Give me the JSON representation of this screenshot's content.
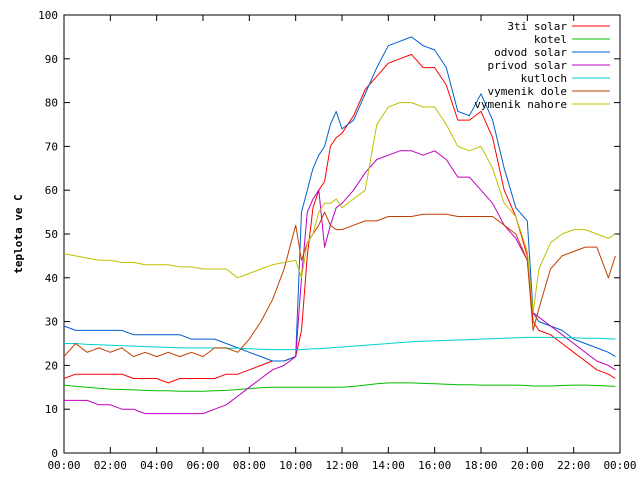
{
  "chart_data": {
    "type": "line",
    "title": "",
    "xlabel": "",
    "ylabel": "teplota ve C",
    "xlim": [
      "00:00",
      "24:00"
    ],
    "ylim": [
      0,
      100
    ],
    "x_ticks": [
      "00:00",
      "02:00",
      "04:00",
      "06:00",
      "08:00",
      "10:00",
      "12:00",
      "14:00",
      "16:00",
      "18:00",
      "20:00",
      "22:00",
      "00:00"
    ],
    "y_ticks": [
      "0",
      "10",
      "20",
      "30",
      "40",
      "50",
      "60",
      "70",
      "80",
      "90",
      "100"
    ],
    "grid": false,
    "legend_position": "top-right",
    "x_hours": [
      0,
      0.5,
      1,
      1.5,
      2,
      2.5,
      3,
      3.5,
      4,
      4.5,
      5,
      5.5,
      6,
      6.5,
      7,
      7.5,
      8,
      8.5,
      9,
      9.5,
      10,
      10.25,
      10.5,
      10.75,
      11,
      11.25,
      11.5,
      11.75,
      12,
      12.5,
      13,
      13.5,
      14,
      14.5,
      15,
      15.5,
      16,
      16.5,
      17,
      17.5,
      18,
      18.5,
      19,
      19.5,
      20,
      20.25,
      20.5,
      21,
      21.5,
      22,
      22.5,
      23,
      23.5,
      23.8
    ],
    "series": [
      {
        "name": "3ti solar",
        "color": "#ff0000",
        "values": [
          17,
          18,
          18,
          18,
          18,
          18,
          17,
          17,
          17,
          16,
          17,
          17,
          17,
          17,
          18,
          18,
          19,
          20,
          21,
          21,
          22,
          28,
          45,
          56,
          60,
          62,
          70,
          72,
          73,
          77,
          83,
          86,
          89,
          90,
          91,
          88,
          88,
          84,
          76,
          76,
          78,
          72,
          60,
          54,
          45,
          30,
          28,
          27,
          25,
          23,
          21,
          19,
          18,
          17
        ]
      },
      {
        "name": "kotel",
        "color": "#00c000",
        "values": [
          15.5,
          15.2,
          15,
          14.8,
          14.6,
          14.5,
          14.4,
          14.3,
          14.2,
          14.2,
          14.1,
          14.1,
          14.1,
          14.2,
          14.3,
          14.5,
          14.7,
          14.9,
          15,
          15,
          15,
          15,
          15,
          15,
          15,
          15,
          15,
          15,
          15,
          15.2,
          15.5,
          15.8,
          16,
          16,
          16,
          15.9,
          15.8,
          15.7,
          15.6,
          15.6,
          15.5,
          15.5,
          15.5,
          15.5,
          15.4,
          15.3,
          15.3,
          15.3,
          15.4,
          15.5,
          15.5,
          15.4,
          15.3,
          15.2
        ]
      },
      {
        "name": "odvod solar",
        "color": "#0060d0",
        "values": [
          29,
          28,
          28,
          28,
          28,
          28,
          27,
          27,
          27,
          27,
          27,
          26,
          26,
          26,
          25,
          24,
          23,
          22,
          21,
          21,
          22,
          55,
          60,
          65,
          68,
          70,
          75,
          78,
          74,
          76,
          82,
          88,
          93,
          94,
          95,
          93,
          92,
          88,
          78,
          77,
          82,
          76,
          65,
          56,
          53,
          32,
          30,
          29,
          28,
          26,
          25,
          24,
          23,
          22
        ]
      },
      {
        "name": "privod solar",
        "color": "#c000c0",
        "values": [
          12,
          12,
          12,
          11,
          11,
          10,
          10,
          9,
          9,
          9,
          9,
          9,
          9,
          10,
          11,
          13,
          15,
          17,
          19,
          20,
          22,
          40,
          55,
          58,
          60,
          47,
          52,
          56,
          57,
          60,
          64,
          67,
          68,
          69,
          69,
          68,
          69,
          67,
          63,
          63,
          60,
          57,
          52,
          49,
          44,
          32,
          31,
          29,
          27,
          25,
          23,
          21,
          20,
          19
        ]
      },
      {
        "name": "kutloch",
        "color": "#00d0d0",
        "values": [
          25,
          25,
          24.8,
          24.7,
          24.6,
          24.5,
          24.4,
          24.3,
          24.2,
          24.1,
          24,
          24,
          24,
          24,
          23.9,
          23.9,
          23.8,
          23.7,
          23.6,
          23.6,
          23.6,
          23.6,
          23.7,
          23.8,
          23.8,
          23.9,
          24,
          24.1,
          24.2,
          24.4,
          24.6,
          24.8,
          25,
          25.2,
          25.4,
          25.5,
          25.6,
          25.7,
          25.8,
          25.9,
          26,
          26.1,
          26.2,
          26.3,
          26.4,
          26.4,
          26.4,
          26.4,
          26.3,
          26.3,
          26.2,
          26.2,
          26.1,
          26
        ]
      },
      {
        "name": "vymenik dole",
        "color": "#c04000",
        "values": [
          22,
          25,
          23,
          24,
          23,
          24,
          22,
          23,
          22,
          23,
          22,
          23,
          22,
          24,
          24,
          23,
          26,
          30,
          35,
          42,
          52,
          44,
          48,
          50,
          52,
          55,
          52,
          51,
          51,
          52,
          53,
          53,
          54,
          54,
          54,
          54.5,
          54.5,
          54.5,
          54,
          54,
          54,
          54,
          52,
          50,
          44,
          28,
          33,
          42,
          45,
          46,
          47,
          47,
          40,
          45
        ]
      },
      {
        "name": "vymenik nahore",
        "color": "#c0c000",
        "values": [
          45.5,
          45,
          44.5,
          44,
          44,
          43.5,
          43.5,
          43,
          43,
          43,
          42.5,
          42.5,
          42,
          42,
          42,
          40,
          41,
          42,
          43,
          43.5,
          44,
          40,
          48,
          50,
          55,
          57,
          57,
          58,
          56,
          58,
          60,
          75,
          79,
          80,
          80,
          79,
          79,
          75,
          70,
          69,
          70,
          65,
          57,
          54,
          46,
          32,
          42,
          48,
          50,
          51,
          51,
          50,
          49,
          50
        ]
      }
    ]
  }
}
